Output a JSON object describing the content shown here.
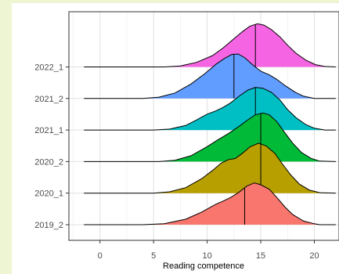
{
  "chart_data": {
    "type": "ridgeline",
    "xlabel": "Reading competence",
    "xlim": [
      -2.9,
      22.3
    ],
    "x_ticks": [
      0,
      5,
      10,
      15,
      20
    ],
    "grid": true,
    "legend": "none",
    "categories": [
      "2019_2",
      "2020_1",
      "2020_2",
      "2021_1",
      "2021_2",
      "2022_1"
    ],
    "series": [
      {
        "color": "#f8766d",
        "median": 13.5,
        "density": [
          [
            -1.5,
            0
          ],
          [
            4,
            0
          ],
          [
            6,
            0.02
          ],
          [
            8,
            0.12
          ],
          [
            9.5,
            0.28
          ],
          [
            10.8,
            0.45
          ],
          [
            11.5,
            0.52
          ],
          [
            12.2,
            0.6
          ],
          [
            13,
            0.72
          ],
          [
            13.7,
            0.85
          ],
          [
            14.4,
            0.92
          ],
          [
            15,
            0.88
          ],
          [
            15.8,
            0.78
          ],
          [
            16.5,
            0.6
          ],
          [
            17.3,
            0.38
          ],
          [
            18,
            0.22
          ],
          [
            19,
            0.08
          ],
          [
            20,
            0.02
          ],
          [
            20.5,
            0
          ],
          [
            22,
            0
          ]
        ]
      },
      {
        "color": "#b79f00",
        "median": 15.0,
        "density": [
          [
            -1.5,
            0
          ],
          [
            5,
            0
          ],
          [
            6.5,
            0.03
          ],
          [
            8,
            0.12
          ],
          [
            9.5,
            0.32
          ],
          [
            10.5,
            0.5
          ],
          [
            11.3,
            0.66
          ],
          [
            12,
            0.74
          ],
          [
            12.6,
            0.76
          ],
          [
            13.2,
            0.86
          ],
          [
            14,
            1.02
          ],
          [
            14.8,
            1.1
          ],
          [
            15.5,
            1.04
          ],
          [
            16.3,
            0.88
          ],
          [
            17,
            0.65
          ],
          [
            17.8,
            0.4
          ],
          [
            18.6,
            0.2
          ],
          [
            19.5,
            0.07
          ],
          [
            20.5,
            0.01
          ],
          [
            22,
            0
          ]
        ]
      },
      {
        "color": "#00ba38",
        "median": 15.0,
        "density": [
          [
            -1.5,
            0
          ],
          [
            5.5,
            0
          ],
          [
            7,
            0.03
          ],
          [
            8.5,
            0.13
          ],
          [
            10,
            0.33
          ],
          [
            11,
            0.48
          ],
          [
            12,
            0.62
          ],
          [
            13,
            0.78
          ],
          [
            13.8,
            0.92
          ],
          [
            14.5,
            1.03
          ],
          [
            15.2,
            1.07
          ],
          [
            15.8,
            1.03
          ],
          [
            16.5,
            0.88
          ],
          [
            17.2,
            0.65
          ],
          [
            18,
            0.4
          ],
          [
            18.8,
            0.2
          ],
          [
            19.7,
            0.07
          ],
          [
            20.5,
            0.01
          ],
          [
            22,
            0
          ]
        ]
      },
      {
        "color": "#00bfc4",
        "median": 14.5,
        "density": [
          [
            -1.5,
            0
          ],
          [
            5,
            0
          ],
          [
            6.5,
            0.02
          ],
          [
            8,
            0.1
          ],
          [
            9,
            0.22
          ],
          [
            10,
            0.35
          ],
          [
            10.8,
            0.42
          ],
          [
            11.5,
            0.5
          ],
          [
            12.2,
            0.6
          ],
          [
            13,
            0.75
          ],
          [
            13.8,
            0.88
          ],
          [
            14.5,
            0.94
          ],
          [
            15.2,
            0.92
          ],
          [
            16,
            0.83
          ],
          [
            16.8,
            0.66
          ],
          [
            17.5,
            0.45
          ],
          [
            18.3,
            0.27
          ],
          [
            19.2,
            0.12
          ],
          [
            20,
            0.04
          ],
          [
            21,
            0
          ],
          [
            22,
            0
          ]
        ]
      },
      {
        "color": "#619cff",
        "median": 12.5,
        "density": [
          [
            -1.5,
            0
          ],
          [
            4,
            0
          ],
          [
            5.5,
            0.03
          ],
          [
            7,
            0.12
          ],
          [
            8.5,
            0.32
          ],
          [
            9.8,
            0.55
          ],
          [
            10.8,
            0.75
          ],
          [
            11.6,
            0.88
          ],
          [
            12.3,
            0.97
          ],
          [
            12.9,
            0.98
          ],
          [
            13.5,
            0.9
          ],
          [
            14.2,
            0.75
          ],
          [
            15,
            0.6
          ],
          [
            15.8,
            0.52
          ],
          [
            16.5,
            0.42
          ],
          [
            17.3,
            0.28
          ],
          [
            18.2,
            0.14
          ],
          [
            19,
            0.05
          ],
          [
            20,
            0
          ],
          [
            22,
            0
          ]
        ]
      },
      {
        "color": "#f564e3",
        "median": 14.5,
        "density": [
          [
            -1.5,
            0
          ],
          [
            6,
            0
          ],
          [
            7.5,
            0.02
          ],
          [
            9,
            0.1
          ],
          [
            10.5,
            0.25
          ],
          [
            11.5,
            0.42
          ],
          [
            12.5,
            0.62
          ],
          [
            13.3,
            0.78
          ],
          [
            14,
            0.9
          ],
          [
            14.7,
            0.95
          ],
          [
            15.3,
            0.92
          ],
          [
            16,
            0.82
          ],
          [
            16.8,
            0.66
          ],
          [
            17.5,
            0.48
          ],
          [
            18.3,
            0.3
          ],
          [
            19.2,
            0.15
          ],
          [
            20.1,
            0.05
          ],
          [
            21,
            0.01
          ],
          [
            22,
            0
          ]
        ]
      }
    ]
  }
}
